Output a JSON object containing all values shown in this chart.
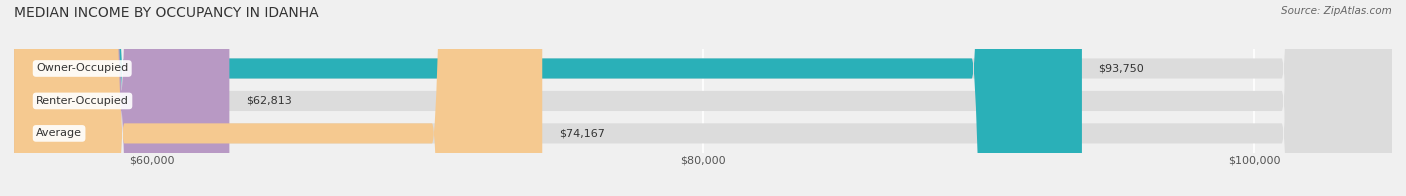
{
  "title": "MEDIAN INCOME BY OCCUPANCY IN IDANHA",
  "source": "Source: ZipAtlas.com",
  "categories": [
    "Owner-Occupied",
    "Renter-Occupied",
    "Average"
  ],
  "values": [
    93750,
    62813,
    74167
  ],
  "bar_colors": [
    "#2ab0b8",
    "#b899c4",
    "#f5c990"
  ],
  "value_labels": [
    "$93,750",
    "$62,813",
    "$74,167"
  ],
  "xmin": 55000,
  "xmax": 105000,
  "xticks": [
    60000,
    80000,
    100000
  ],
  "xtick_labels": [
    "$60,000",
    "$80,000",
    "$100,000"
  ],
  "bar_height": 0.62,
  "background_color": "#f0f0f0",
  "title_fontsize": 10,
  "label_fontsize": 8,
  "tick_fontsize": 8
}
